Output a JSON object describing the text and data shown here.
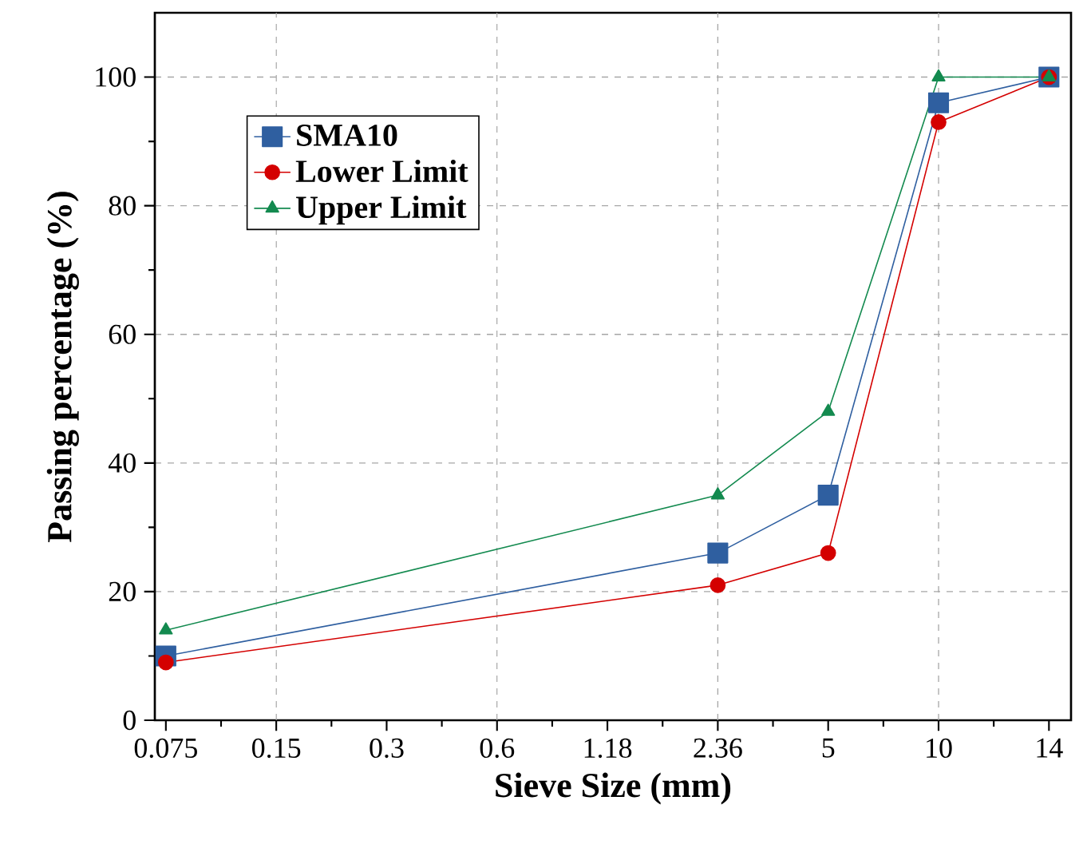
{
  "chart_data": {
    "type": "line",
    "xlabel": "Sieve Size (mm)",
    "ylabel": "Passing percentage (%)",
    "categories": [
      "0.075",
      "0.15",
      "0.3",
      "0.6",
      "1.18",
      "2.36",
      "5",
      "10",
      "14"
    ],
    "series": [
      {
        "name": "SMA10",
        "color": "#2f5fa0",
        "marker": "square",
        "values": [
          10,
          null,
          null,
          null,
          null,
          26,
          35,
          96,
          100
        ]
      },
      {
        "name": "Lower Limit",
        "color": "#d40000",
        "marker": "circle",
        "values": [
          9,
          null,
          null,
          null,
          null,
          21,
          26,
          93,
          100
        ]
      },
      {
        "name": "Upper Limit",
        "color": "#138a4f",
        "marker": "triangle",
        "values": [
          14,
          null,
          null,
          null,
          null,
          35,
          48,
          100,
          100
        ]
      }
    ],
    "ylim": [
      0,
      110
    ],
    "yticks": [
      0,
      20,
      40,
      60,
      80,
      100
    ],
    "grid": true,
    "legend": "top left",
    "line_style": "solid"
  }
}
